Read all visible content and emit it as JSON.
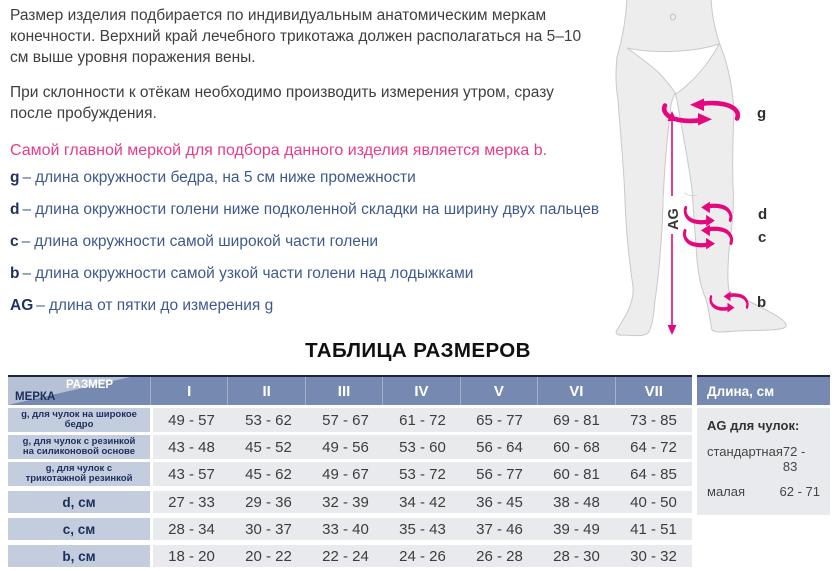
{
  "intro": {
    "p1_lines": [
      "Размер изделия подбирается по индивидуальным анатомическим меркам",
      "конечности. Верхний край лечебного трикотажа должен располагаться на 5–10",
      "см выше уровня поражения вены."
    ],
    "p2_lines": [
      "При склонности к отёкам необходимо производить измерения утром, сразу",
      "после пробуждения."
    ],
    "highlight": "Самой главной меркой для подбора данного изделия является мерка b."
  },
  "measurements_separator": "–",
  "measurements": [
    {
      "letter": "g",
      "text": "длина окружности бедра, на 5 см ниже промежности"
    },
    {
      "letter": "d",
      "text": "длина окружности голени ниже подколенной складки на ширину двух пальцев"
    },
    {
      "letter": "c",
      "text": "длина окружности самой широкой части голени"
    },
    {
      "letter": "b",
      "text": "длина окружности самой узкой части голени над лодыжками"
    },
    {
      "letter": "AG",
      "text": "длина от пятки до измерения g"
    }
  ],
  "diagram": {
    "thigh_label": "g",
    "below_knee_label": "d",
    "calf_label": "c",
    "ankle_label": "b",
    "length_label": "AG"
  },
  "table": {
    "title": "ТАБЛИЦА РАЗМЕРОВ",
    "corner": {
      "top": "РАЗМЕР",
      "bottom": "МЕРКА"
    },
    "columns": [
      "I",
      "II",
      "III",
      "IV",
      "V",
      "VI",
      "VII"
    ],
    "rows": [
      {
        "label": "g, для чулок на широкое бедро",
        "small": true,
        "values": [
          "49 - 57",
          "53 - 62",
          "57 - 67",
          "61 - 72",
          "65 - 77",
          "69 - 81",
          "73 - 85"
        ]
      },
      {
        "label": "g, для чулок с резинкой на силиконовой основе",
        "small": true,
        "values": [
          "43 - 48",
          "45 - 52",
          "49 - 56",
          "53 - 60",
          "56 - 64",
          "60 - 68",
          "64 - 72"
        ]
      },
      {
        "label": "g, для чулок с трикотажной резинкой",
        "small": true,
        "values": [
          "43 - 57",
          "45 - 62",
          "49 - 67",
          "53 - 72",
          "56 - 77",
          "60 - 81",
          "64 - 85"
        ]
      },
      {
        "label": "d, см",
        "small": false,
        "values": [
          "27 - 33",
          "29 - 36",
          "32 - 39",
          "34 - 42",
          "36 - 45",
          "38 - 48",
          "40 - 50"
        ]
      },
      {
        "label": "c, см",
        "small": false,
        "values": [
          "28 - 34",
          "30 - 37",
          "33 - 40",
          "35 - 43",
          "37 - 46",
          "39 - 49",
          "41 - 51"
        ]
      },
      {
        "label": "b, см",
        "small": false,
        "values": [
          "18 - 20",
          "20 - 22",
          "22 - 24",
          "24 - 26",
          "26 - 28",
          "28 - 30",
          "30 - 32"
        ]
      }
    ]
  },
  "length_box": {
    "header": "Длина, см",
    "subtitle": "AG для чулок:",
    "rows": [
      {
        "label": "стандартная",
        "value": "72 - 83"
      },
      {
        "label": "малая",
        "value": "62 - 71"
      }
    ]
  },
  "colors": {
    "accent_pink": "#e5077e",
    "highlight_pink": "#e83b87",
    "header_blue": "#7689b0",
    "corner_light_blue": "#b7c1d5",
    "label_column_blue": "#c4cdde",
    "row_gray": "#e9eaee",
    "text_navy": "#1c2f5c",
    "body_text": "#3f3f3f",
    "dark_border": "#1b2540"
  }
}
